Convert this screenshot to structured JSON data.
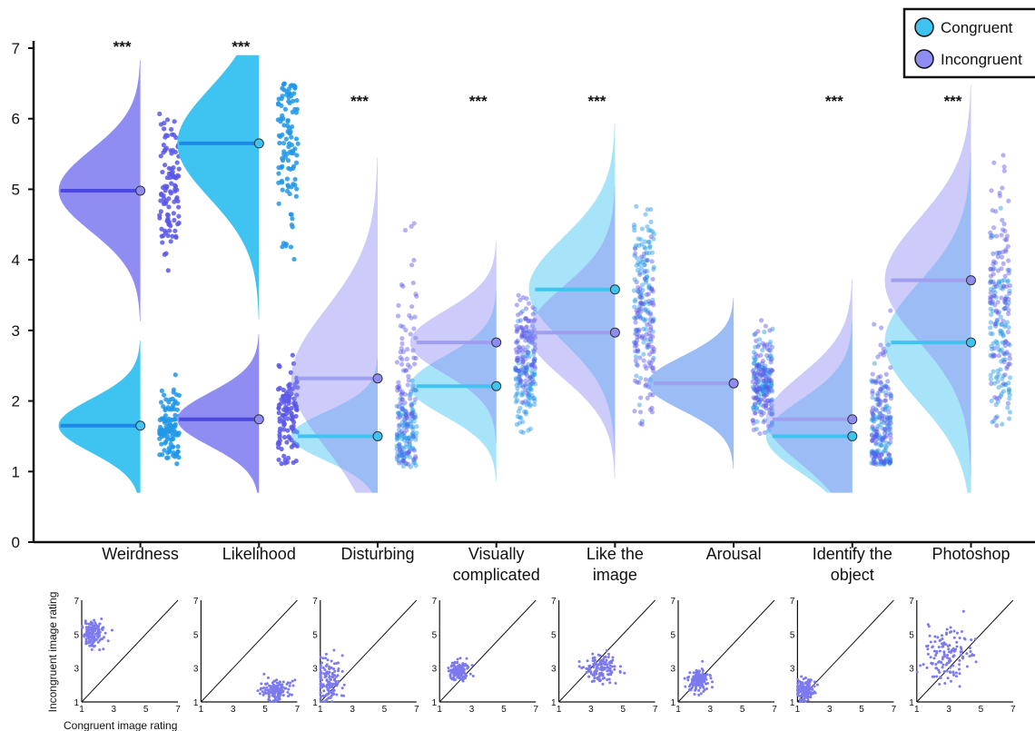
{
  "chart_data": [
    {
      "type": "raincloud",
      "y_axis": {
        "ticks": [
          "0",
          "1",
          "2",
          "3",
          "4",
          "5",
          "6",
          "7"
        ],
        "range": [
          0,
          7
        ]
      },
      "legend": {
        "placement": "top-right",
        "entries": [
          {
            "label": "Congruent",
            "color": "#3fc4f2"
          },
          {
            "label": "Incongruent",
            "color": "#8f8cf2"
          }
        ]
      },
      "colors": {
        "congruent": "#3fc4f2",
        "incongruent": "#8f8cf2",
        "congruent_dot": "#2196e6",
        "incongruent_dot": "#5a57e8"
      },
      "categories": [
        {
          "name_lines": [
            "Weirdness"
          ],
          "significance": "***",
          "congruent_mean": 1.65,
          "incongruent_mean": 4.98,
          "highlight": true,
          "congruent_range": [
            1.1,
            2.8
          ],
          "incongruent_range": [
            3.5,
            6.1
          ]
        },
        {
          "name_lines": [
            "Likelihood"
          ],
          "significance": "***",
          "congruent_mean": 5.65,
          "incongruent_mean": 1.74,
          "highlight": true,
          "congruent_range": [
            3.0,
            6.5
          ],
          "incongruent_range": [
            1.1,
            2.8
          ]
        },
        {
          "name_lines": [
            "Disturbing"
          ],
          "significance": "***",
          "congruent_mean": 1.5,
          "incongruent_mean": 2.32,
          "highlight": false,
          "congruent_range": [
            1.05,
            2.6
          ],
          "incongruent_range": [
            1.1,
            5.5
          ]
        },
        {
          "name_lines": [
            "Visually",
            "complicated"
          ],
          "significance": "***",
          "congruent_mean": 2.21,
          "incongruent_mean": 2.83,
          "highlight": false,
          "congruent_range": [
            1.5,
            3.4
          ],
          "incongruent_range": [
            1.8,
            3.8
          ]
        },
        {
          "name_lines": [
            "Like the",
            "image"
          ],
          "significance": "***",
          "congruent_mean": 3.58,
          "incongruent_mean": 2.97,
          "highlight": false,
          "congruent_range": [
            1.7,
            5.0
          ],
          "incongruent_range": [
            1.6,
            4.5
          ]
        },
        {
          "name_lines": [
            "Arousal"
          ],
          "significance": "",
          "congruent_mean": 2.25,
          "incongruent_mean": 2.25,
          "highlight": false,
          "congruent_range": [
            1.5,
            3.2
          ],
          "incongruent_range": [
            1.5,
            3.2
          ]
        },
        {
          "name_lines": [
            "Identify the",
            "object"
          ],
          "significance": "***",
          "congruent_mean": 1.5,
          "incongruent_mean": 1.74,
          "highlight": false,
          "congruent_range": [
            1.1,
            3.4
          ],
          "incongruent_range": [
            1.1,
            3.9
          ]
        },
        {
          "name_lines": [
            "Photoshop"
          ],
          "significance": "***",
          "congruent_mean": 2.83,
          "incongruent_mean": 3.71,
          "highlight": false,
          "congruent_range": [
            1.6,
            5.4
          ],
          "incongruent_range": [
            1.6,
            5.5
          ]
        }
      ]
    },
    {
      "type": "scatter",
      "panels": 8,
      "xlabel": "Congruent image rating",
      "ylabel": "Incongruent image rating",
      "xticks": [
        "1",
        "3",
        "5",
        "7"
      ],
      "yticks": [
        "1",
        "3",
        "5",
        "7"
      ],
      "range": [
        1,
        7
      ],
      "identity_line": true,
      "point_color": "#7d7aef",
      "clusters": [
        {
          "cx": 1.7,
          "cy": 5.0,
          "sx": 0.35,
          "sy": 0.4
        },
        {
          "cx": 5.6,
          "cy": 1.7,
          "sx": 0.5,
          "sy": 0.3
        },
        {
          "cx": 1.5,
          "cy": 2.3,
          "sx": 0.35,
          "sy": 0.7
        },
        {
          "cx": 2.2,
          "cy": 2.8,
          "sx": 0.35,
          "sy": 0.3
        },
        {
          "cx": 3.6,
          "cy": 3.0,
          "sx": 0.5,
          "sy": 0.45
        },
        {
          "cx": 2.25,
          "cy": 2.25,
          "sx": 0.3,
          "sy": 0.3
        },
        {
          "cx": 1.5,
          "cy": 1.7,
          "sx": 0.3,
          "sy": 0.35
        },
        {
          "cx": 2.8,
          "cy": 3.7,
          "sx": 0.8,
          "sy": 0.8
        }
      ]
    }
  ]
}
